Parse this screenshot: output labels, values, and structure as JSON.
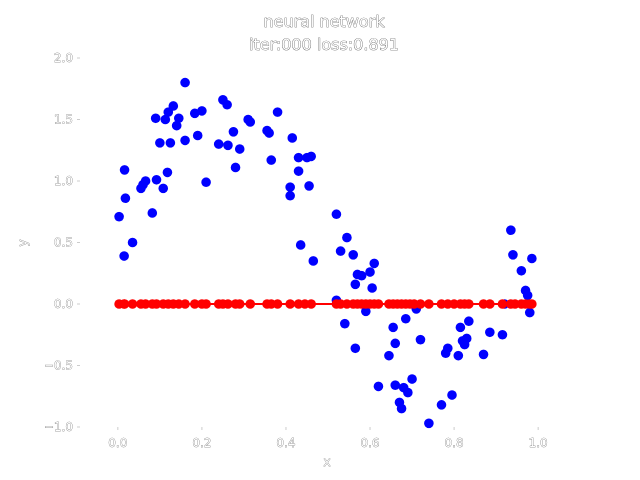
{
  "chart_data": {
    "type": "scatter",
    "title": "neural network",
    "subtitle": "iter:000 loss:0.891",
    "xlabel": "x",
    "ylabel": "y",
    "xlim": [
      -0.09,
      1.09
    ],
    "ylim": [
      -1.0,
      2.0
    ],
    "xticks": [
      0.0,
      0.2,
      0.4,
      0.6,
      0.8,
      1.0
    ],
    "xtick_labels": [
      "0.0",
      "0.2",
      "0.4",
      "0.6",
      "0.8",
      "1.0"
    ],
    "yticks": [
      -1.0,
      -0.5,
      0.0,
      0.5,
      1.0,
      1.5,
      2.0
    ],
    "ytick_labels": [
      "−1.0",
      "−0.5",
      "0.0",
      "0.5",
      "1.0",
      "1.5",
      "2.0"
    ],
    "grid": false,
    "series": [
      {
        "kind": "scatter",
        "color": "#0000ff",
        "points": [
          [
            0.003,
            0.71
          ],
          [
            0.015,
            0.39
          ],
          [
            0.016,
            1.09
          ],
          [
            0.018,
            0.86
          ],
          [
            0.035,
            0.5
          ],
          [
            0.055,
            0.94
          ],
          [
            0.06,
            0.97
          ],
          [
            0.066,
            1.0
          ],
          [
            0.082,
            0.74
          ],
          [
            0.09,
            1.51
          ],
          [
            0.092,
            1.01
          ],
          [
            0.1,
            1.31
          ],
          [
            0.108,
            0.94
          ],
          [
            0.113,
            1.5
          ],
          [
            0.118,
            1.07
          ],
          [
            0.12,
            1.56
          ],
          [
            0.125,
            1.31
          ],
          [
            0.132,
            1.61
          ],
          [
            0.14,
            1.45
          ],
          [
            0.145,
            1.51
          ],
          [
            0.16,
            1.33
          ],
          [
            0.16,
            1.8
          ],
          [
            0.183,
            1.55
          ],
          [
            0.19,
            1.37
          ],
          [
            0.2,
            1.57
          ],
          [
            0.21,
            0.99
          ],
          [
            0.24,
            1.3
          ],
          [
            0.25,
            1.66
          ],
          [
            0.26,
            1.62
          ],
          [
            0.262,
            1.29
          ],
          [
            0.275,
            1.4
          ],
          [
            0.28,
            1.11
          ],
          [
            0.29,
            1.26
          ],
          [
            0.31,
            1.5
          ],
          [
            0.315,
            1.48
          ],
          [
            0.355,
            1.41
          ],
          [
            0.36,
            1.39
          ],
          [
            0.365,
            1.17
          ],
          [
            0.38,
            1.56
          ],
          [
            0.41,
            0.95
          ],
          [
            0.41,
            0.88
          ],
          [
            0.415,
            1.35
          ],
          [
            0.43,
            1.19
          ],
          [
            0.43,
            1.08
          ],
          [
            0.435,
            0.48
          ],
          [
            0.45,
            1.19
          ],
          [
            0.455,
            0.96
          ],
          [
            0.46,
            1.2
          ],
          [
            0.465,
            0.35
          ],
          [
            0.52,
            0.73
          ],
          [
            0.52,
            0.03
          ],
          [
            0.53,
            0.43
          ],
          [
            0.54,
            -0.16
          ],
          [
            0.545,
            0.54
          ],
          [
            0.56,
            0.4
          ],
          [
            0.565,
            0.16
          ],
          [
            0.565,
            -0.36
          ],
          [
            0.57,
            0.24
          ],
          [
            0.58,
            0.23
          ],
          [
            0.59,
            -0.06
          ],
          [
            0.6,
            0.26
          ],
          [
            0.605,
            0.13
          ],
          [
            0.61,
            0.33
          ],
          [
            0.62,
            -0.67
          ],
          [
            0.645,
            -0.42
          ],
          [
            0.655,
            -0.19
          ],
          [
            0.66,
            -0.32
          ],
          [
            0.66,
            -0.66
          ],
          [
            0.67,
            -0.8
          ],
          [
            0.675,
            -0.85
          ],
          [
            0.68,
            -0.68
          ],
          [
            0.685,
            -0.12
          ],
          [
            0.69,
            -0.72
          ],
          [
            0.7,
            -0.61
          ],
          [
            0.71,
            -0.04
          ],
          [
            0.72,
            -0.29
          ],
          [
            0.74,
            -0.97
          ],
          [
            0.77,
            -0.82
          ],
          [
            0.78,
            -0.4
          ],
          [
            0.785,
            -0.36
          ],
          [
            0.795,
            -0.74
          ],
          [
            0.81,
            -0.42
          ],
          [
            0.815,
            -0.19
          ],
          [
            0.82,
            -0.3
          ],
          [
            0.825,
            -0.33
          ],
          [
            0.83,
            -0.28
          ],
          [
            0.835,
            -0.14
          ],
          [
            0.87,
            -0.41
          ],
          [
            0.885,
            -0.23
          ],
          [
            0.915,
            -0.25
          ],
          [
            0.92,
            0.0
          ],
          [
            0.935,
            0.6
          ],
          [
            0.94,
            0.4
          ],
          [
            0.96,
            0.27
          ],
          [
            0.97,
            0.11
          ],
          [
            0.975,
            0.07
          ],
          [
            0.98,
            -0.07
          ],
          [
            0.985,
            0.37
          ]
        ]
      },
      {
        "kind": "line-with-markers",
        "color": "#ff0000",
        "points": [
          [
            0.003,
            0.0
          ],
          [
            0.015,
            0.0
          ],
          [
            0.016,
            0.0
          ],
          [
            0.035,
            0.0
          ],
          [
            0.055,
            0.0
          ],
          [
            0.066,
            0.0
          ],
          [
            0.082,
            0.0
          ],
          [
            0.092,
            0.0
          ],
          [
            0.108,
            0.0
          ],
          [
            0.12,
            0.0
          ],
          [
            0.132,
            0.0
          ],
          [
            0.145,
            0.0
          ],
          [
            0.16,
            0.0
          ],
          [
            0.183,
            0.0
          ],
          [
            0.2,
            0.0
          ],
          [
            0.21,
            0.0
          ],
          [
            0.24,
            0.0
          ],
          [
            0.25,
            0.0
          ],
          [
            0.262,
            0.0
          ],
          [
            0.28,
            0.0
          ],
          [
            0.29,
            0.0
          ],
          [
            0.315,
            0.0
          ],
          [
            0.355,
            0.0
          ],
          [
            0.365,
            0.0
          ],
          [
            0.38,
            0.0
          ],
          [
            0.41,
            0.0
          ],
          [
            0.43,
            0.0
          ],
          [
            0.445,
            0.0
          ],
          [
            0.46,
            0.0
          ],
          [
            0.52,
            0.0
          ],
          [
            0.53,
            0.0
          ],
          [
            0.545,
            0.0
          ],
          [
            0.56,
            0.0
          ],
          [
            0.57,
            0.0
          ],
          [
            0.58,
            0.0
          ],
          [
            0.59,
            0.0
          ],
          [
            0.6,
            0.0
          ],
          [
            0.61,
            0.0
          ],
          [
            0.62,
            0.0
          ],
          [
            0.645,
            0.0
          ],
          [
            0.655,
            0.0
          ],
          [
            0.665,
            0.0
          ],
          [
            0.675,
            0.0
          ],
          [
            0.685,
            0.0
          ],
          [
            0.695,
            0.0
          ],
          [
            0.705,
            0.0
          ],
          [
            0.72,
            0.0
          ],
          [
            0.74,
            0.0
          ],
          [
            0.77,
            0.0
          ],
          [
            0.785,
            0.0
          ],
          [
            0.8,
            0.0
          ],
          [
            0.815,
            0.0
          ],
          [
            0.825,
            0.0
          ],
          [
            0.835,
            0.0
          ],
          [
            0.87,
            0.0
          ],
          [
            0.885,
            0.0
          ],
          [
            0.915,
            0.0
          ],
          [
            0.935,
            0.0
          ],
          [
            0.945,
            0.0
          ],
          [
            0.96,
            0.0
          ],
          [
            0.97,
            0.0
          ],
          [
            0.98,
            0.0
          ],
          [
            0.985,
            0.0
          ]
        ]
      }
    ]
  }
}
